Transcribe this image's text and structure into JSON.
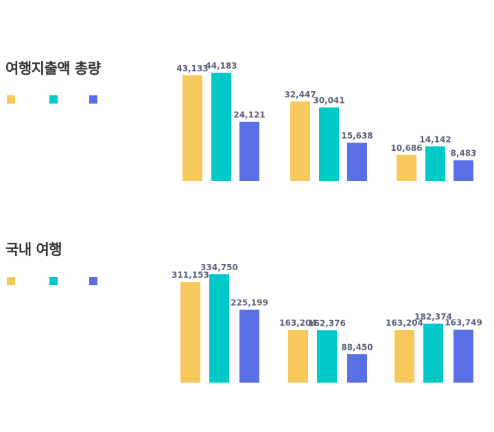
{
  "colors": [
    "#f7c85c",
    "#00cac8",
    "#5a6fe3"
  ],
  "chart_data": [
    {
      "type": "bar",
      "title": "여행지출액 총량",
      "categories": [
        "",
        "",
        ""
      ],
      "series": [
        {
          "values": [
            43133,
            32447,
            10686
          ],
          "labels": [
            "43,133",
            "32,447",
            "10,686"
          ]
        },
        {
          "values": [
            44183,
            30041,
            14142
          ],
          "labels": [
            "44,183",
            "30,041",
            "14,142"
          ]
        },
        {
          "values": [
            24121,
            15638,
            8483
          ],
          "labels": [
            "24,121",
            "15,638",
            "8,483"
          ]
        }
      ],
      "legend": {
        "placement": "left",
        "entries": [
          "",
          "",
          ""
        ]
      },
      "ylim": [
        0,
        44183
      ],
      "grid": false
    },
    {
      "type": "bar",
      "title": "국내 여행",
      "categories": [
        "",
        "",
        ""
      ],
      "series": [
        {
          "values": [
            311153,
            163204,
            163204
          ],
          "labels": [
            "311,153",
            "163,204",
            "163,204"
          ]
        },
        {
          "values": [
            334750,
            162376,
            182374
          ],
          "labels": [
            "334,750",
            "162,376",
            "182,374"
          ]
        },
        {
          "values": [
            225199,
            88450,
            163749
          ],
          "labels": [
            "225,199",
            "88,450",
            "163,749"
          ]
        }
      ],
      "legend": {
        "placement": "left",
        "entries": [
          "",
          "",
          ""
        ]
      },
      "ylim": [
        0,
        334750
      ],
      "grid": false
    }
  ]
}
